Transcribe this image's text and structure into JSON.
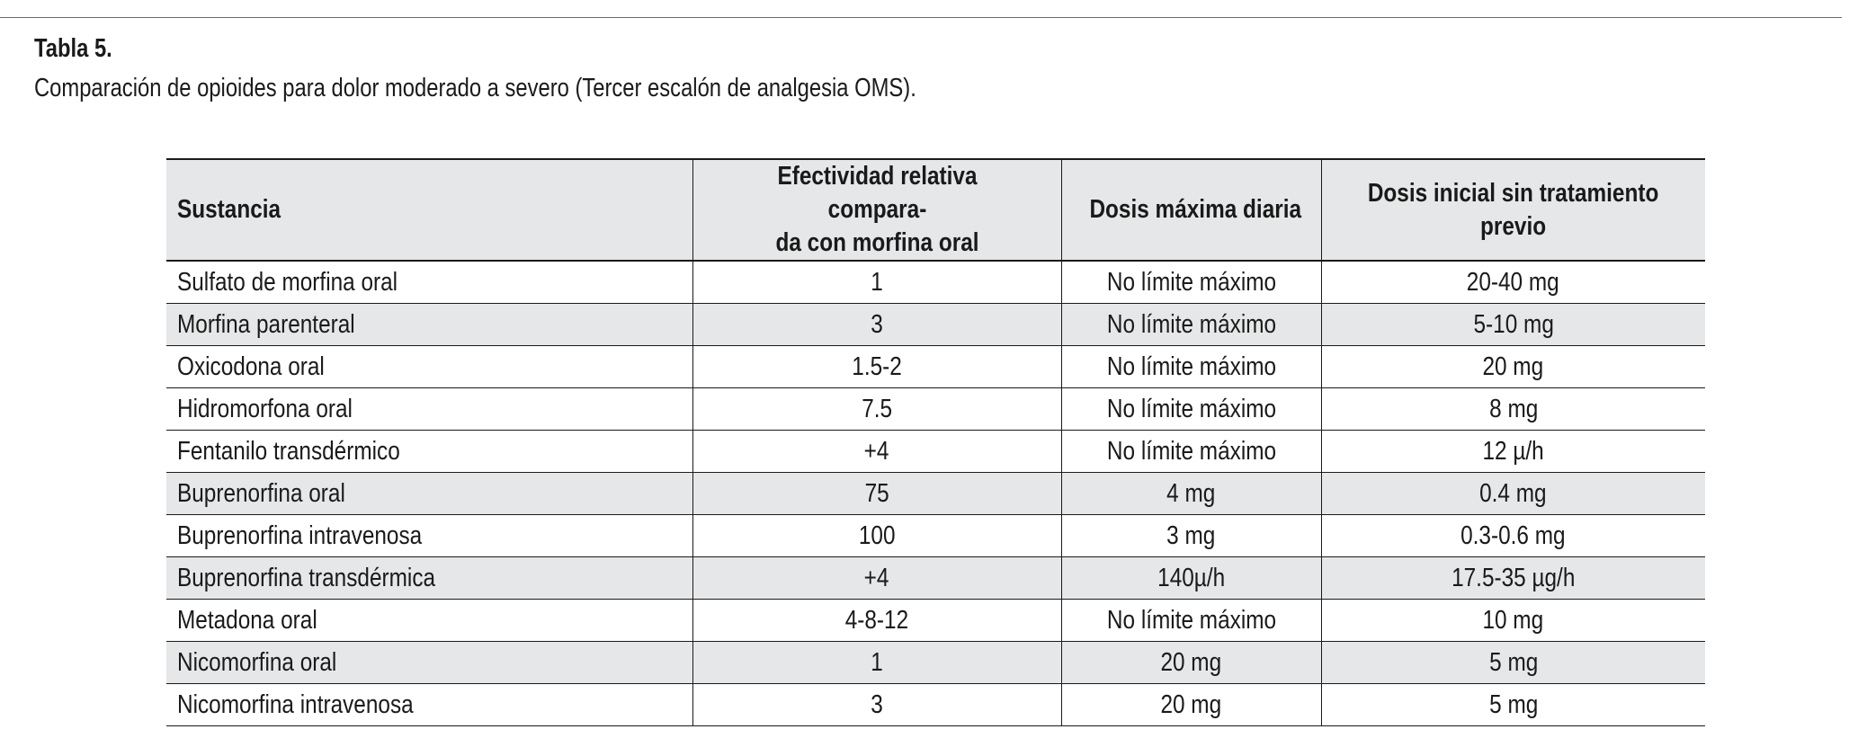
{
  "caption": {
    "title": "Tabla 5.",
    "subtitle": "Comparación de opioides para dolor moderado a severo (Tercer escalón de analgesia OMS)."
  },
  "table": {
    "headers": [
      "Sustancia",
      "Efectividad relativa compara-\nda con morfina oral",
      "Dosis máxima diaria",
      "Dosis inicial sin tratamiento\nprevio"
    ],
    "rows": [
      [
        "Sulfato de morfina oral",
        "1",
        "No límite máximo",
        "20-40 mg"
      ],
      [
        "Morfina parenteral",
        "3",
        "No límite máximo",
        "5-10 mg"
      ],
      [
        "Oxicodona oral",
        "1.5-2",
        "No límite máximo",
        "20 mg"
      ],
      [
        "Hidromorfona oral",
        "7.5",
        "No límite máximo",
        "8 mg"
      ],
      [
        "Fentanilo transdérmico",
        "+4",
        "No límite máximo",
        "12 µ/h"
      ],
      [
        "Buprenorfina oral",
        "75",
        "4 mg",
        "0.4 mg"
      ],
      [
        "Buprenorfina intravenosa",
        "100",
        "3 mg",
        "0.3-0.6 mg"
      ],
      [
        "Buprenorfina transdérmica",
        "+4",
        "140µ/h",
        "17.5-35 µg/h"
      ],
      [
        "Metadona oral",
        "4-8-12",
        "No límite máximo",
        "10 mg"
      ],
      [
        "Nicomorfina oral",
        "1",
        "20 mg",
        "5 mg"
      ],
      [
        "Nicomorfina intravenosa",
        "3",
        "20 mg",
        "5 mg"
      ]
    ]
  },
  "colors": {
    "header_shade": "#e6e7e8",
    "row_shade": "#e6e7e8",
    "rule": "#1a1a1a",
    "text": "#1a1a1a"
  }
}
